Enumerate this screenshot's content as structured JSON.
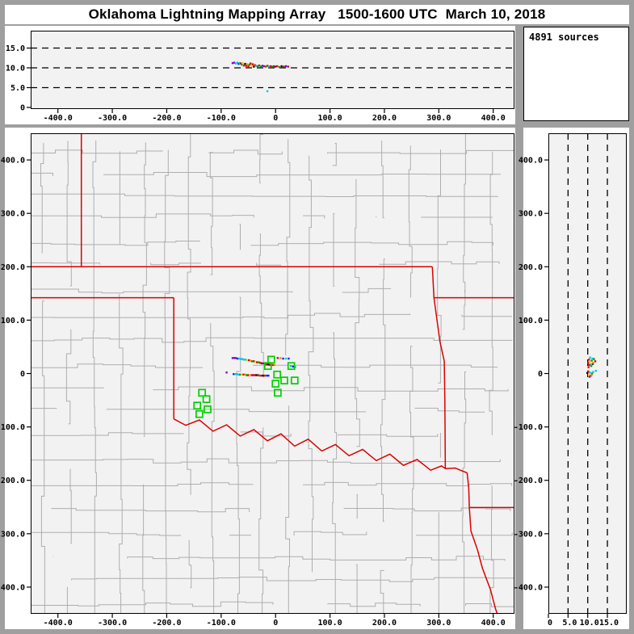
{
  "window": {
    "title": "Oklahoma Lightning Mapping Array   1500-1600 UTC  March 10, 2018",
    "sources_count_label": "4891 sources"
  },
  "palette": {
    "frame_gray": "#9f9f9f",
    "panel_white": "#ffffff",
    "plot_background": "#f2f2f2",
    "axis_black": "#000000",
    "county_line": "#aeaeae",
    "state_border_red": "#dd0000",
    "station_green": "#00cf00"
  },
  "axes": {
    "east_west": {
      "range_km": [
        -450,
        439
      ],
      "ticks": [
        -400,
        -300,
        -200,
        -100,
        0,
        100,
        200,
        300,
        400
      ],
      "tick_labels": [
        "-400.0",
        "-300.0",
        "-200.0",
        "-100.0",
        "0",
        "100.0",
        "200.0",
        "300.0",
        "400.0"
      ]
    },
    "north_south": {
      "range_km": [
        -450,
        450
      ],
      "ticks": [
        400,
        300,
        200,
        100,
        0,
        -100,
        -200,
        -300,
        -400
      ],
      "tick_labels": [
        "400.0",
        "300.0",
        "200.0",
        "100.0",
        "0",
        "-100.0",
        "-200.0",
        "-300.0",
        "-400.0"
      ]
    },
    "altitude": {
      "range_km": [
        0,
        19.5
      ],
      "ticks": [
        0,
        5,
        10,
        15
      ],
      "tick_labels": [
        "0",
        "5.0",
        "10.0",
        "15.0"
      ],
      "dashed_gridlines_km": [
        5,
        10,
        15
      ]
    }
  },
  "chart_data": [
    {
      "type": "scatter",
      "name": "altitude-vs-east-west",
      "xlabel": "",
      "ylabel": "",
      "xlim": [
        -450,
        439
      ],
      "ylim": [
        0,
        19.5
      ],
      "points": [
        [
          -79,
          11.2,
          "#9400d3"
        ],
        [
          -76,
          11.3,
          "#9400d3"
        ],
        [
          -73,
          11.1,
          "#00c8e8"
        ],
        [
          -70,
          11.3,
          "#00c8e8"
        ],
        [
          -68,
          11.0,
          "#2020ff"
        ],
        [
          -66,
          11.2,
          "#00c8e8"
        ],
        [
          -64,
          11.1,
          "#e80000"
        ],
        [
          -62,
          10.8,
          "#00a000"
        ],
        [
          -60,
          11.2,
          "#ffd400"
        ],
        [
          -58,
          10.6,
          "#e80000"
        ],
        [
          -56,
          11.0,
          "#111111"
        ],
        [
          -54,
          10.5,
          "#e80000"
        ],
        [
          -52,
          10.9,
          "#ff8c00"
        ],
        [
          -50,
          10.4,
          "#e80000"
        ],
        [
          -48,
          10.8,
          "#00a000"
        ],
        [
          -46,
          11.1,
          "#e80000"
        ],
        [
          -44,
          10.5,
          "#ffd400"
        ],
        [
          -42,
          10.9,
          "#e80000"
        ],
        [
          -40,
          10.3,
          "#111111"
        ],
        [
          -38,
          10.7,
          "#e80000"
        ],
        [
          -36,
          10.5,
          "#00c8e8"
        ],
        [
          -33,
          10.4,
          "#00a000"
        ],
        [
          -30,
          10.6,
          "#e80000"
        ],
        [
          -27,
          10.3,
          "#00a000"
        ],
        [
          -24,
          10.5,
          "#2020ff"
        ],
        [
          -21,
          10.4,
          "#e80000"
        ],
        [
          -18,
          10.3,
          "#00a000"
        ],
        [
          -15,
          10.5,
          "#e80000"
        ],
        [
          -12,
          10.3,
          "#00c8e8"
        ],
        [
          -9,
          10.4,
          "#e80000"
        ],
        [
          -6,
          10.3,
          "#00a000"
        ],
        [
          -3,
          10.4,
          "#e80000"
        ],
        [
          0,
          10.3,
          "#2020ff"
        ],
        [
          3,
          10.4,
          "#e80000"
        ],
        [
          7,
          10.2,
          "#00a000"
        ],
        [
          11,
          10.4,
          "#111111"
        ],
        [
          15,
          10.3,
          "#e80000"
        ],
        [
          19,
          10.4,
          "#2020ff"
        ],
        [
          23,
          10.3,
          "#e80000"
        ],
        [
          -15,
          4.1,
          "#00c8e8"
        ]
      ]
    },
    {
      "type": "scatter",
      "name": "plan-view-map",
      "xlabel": "",
      "ylabel": "",
      "xlim": [
        -450,
        439
      ],
      "ylim": [
        -450,
        450
      ],
      "points": [
        [
          -79,
          29,
          "#9400d3"
        ],
        [
          -76,
          29,
          "#9400d3"
        ],
        [
          -73,
          29,
          "#9400d3"
        ],
        [
          -70,
          28,
          "#2020ff"
        ],
        [
          -67,
          28,
          "#00c8e8"
        ],
        [
          -64,
          27,
          "#00c8e8"
        ],
        [
          -61,
          27,
          "#00c8e8"
        ],
        [
          -58,
          26,
          "#00c8e8"
        ],
        [
          -55,
          26,
          "#00c8e8"
        ],
        [
          -52,
          25,
          "#ffd400"
        ],
        [
          -49,
          25,
          "#e80000"
        ],
        [
          -46,
          24,
          "#ff8c00"
        ],
        [
          -43,
          23,
          "#00a000"
        ],
        [
          -40,
          23,
          "#e80000"
        ],
        [
          -37,
          22,
          "#ffd400"
        ],
        [
          -34,
          21,
          "#e80000"
        ],
        [
          -31,
          21,
          "#00a000"
        ],
        [
          -28,
          20,
          "#e80000"
        ],
        [
          -25,
          19,
          "#2020ff"
        ],
        [
          -22,
          19,
          "#e80000"
        ],
        [
          -19,
          18,
          "#00a000"
        ],
        [
          -16,
          17,
          "#e80000"
        ],
        [
          -13,
          17,
          "#111111"
        ],
        [
          -10,
          16,
          "#e80000"
        ],
        [
          -7,
          16,
          "#00a000"
        ],
        [
          -4,
          16,
          "#e80000"
        ],
        [
          -2,
          16,
          "#ff8c00"
        ],
        [
          4,
          29,
          "#e80000"
        ],
        [
          9,
          29,
          "#ff8c00"
        ],
        [
          14,
          28,
          "#2020ff"
        ],
        [
          19,
          28,
          "#00c8e8"
        ],
        [
          24,
          28,
          "#2020ff"
        ],
        [
          28,
          14,
          "#00c8e8"
        ],
        [
          32,
          13,
          "#2020ff"
        ],
        [
          36,
          12,
          "#00c8e8"
        ],
        [
          -90,
          2,
          "#9400d3"
        ],
        [
          -77,
          -1,
          "#2020ff"
        ],
        [
          -74,
          -1,
          "#00c8e8"
        ],
        [
          -71,
          -1,
          "#00c8e8"
        ],
        [
          -68,
          -2,
          "#00c8e8"
        ],
        [
          -65,
          -2,
          "#00a000"
        ],
        [
          -62,
          -2,
          "#ffd400"
        ],
        [
          -59,
          -2,
          "#e80000"
        ],
        [
          -56,
          -2,
          "#ff8c00"
        ],
        [
          -53,
          -3,
          "#00a000"
        ],
        [
          -50,
          -3,
          "#e80000"
        ],
        [
          -47,
          -3,
          "#ffd400"
        ],
        [
          -44,
          -3,
          "#e80000"
        ],
        [
          -41,
          -3,
          "#9400d3"
        ],
        [
          -38,
          -3,
          "#e80000"
        ],
        [
          -35,
          -3,
          "#111111"
        ],
        [
          -32,
          -3,
          "#e80000"
        ],
        [
          -29,
          -4,
          "#00a000"
        ],
        [
          -26,
          -4,
          "#e80000"
        ],
        [
          -23,
          -4,
          "#111111"
        ],
        [
          -20,
          -4,
          "#e80000"
        ],
        [
          -16,
          -4,
          "#2020ff"
        ],
        [
          -13,
          -4,
          "#2020ff"
        ]
      ],
      "stations_km": [
        [
          -8,
          26
        ],
        [
          -14,
          14
        ],
        [
          29,
          14
        ],
        [
          3,
          -2
        ],
        [
          0,
          -19
        ],
        [
          16,
          -13
        ],
        [
          35,
          -13
        ],
        [
          4,
          -36
        ],
        [
          -135,
          -36
        ],
        [
          -127,
          -48
        ],
        [
          -144,
          -60
        ],
        [
          -125,
          -67
        ],
        [
          -140,
          -76
        ]
      ],
      "state_borders_km": [
        {
          "name": "colorado-kansas",
          "pts": [
            [
              -357,
              450
            ],
            [
              -357,
              200
            ]
          ]
        },
        {
          "name": "kansas-oklahoma-37n",
          "pts": [
            [
              -450,
              200
            ],
            [
              288,
              200
            ]
          ]
        },
        {
          "name": "panhandle-south-36-5n",
          "pts": [
            [
              -450,
              142
            ],
            [
              -187,
              142
            ]
          ]
        },
        {
          "name": "texas-oklahoma-100w",
          "pts": [
            [
              -187,
              142
            ],
            [
              -187,
              -85
            ]
          ]
        },
        {
          "name": "red-river",
          "pts": [
            [
              -187,
              -85
            ],
            [
              -165,
              -97
            ],
            [
              -140,
              -87
            ],
            [
              -115,
              -108
            ],
            [
              -90,
              -96
            ],
            [
              -65,
              -117
            ],
            [
              -40,
              -105
            ],
            [
              -15,
              -126
            ],
            [
              10,
              -113
            ],
            [
              35,
              -136
            ],
            [
              60,
              -123
            ],
            [
              85,
              -145
            ],
            [
              110,
              -133
            ],
            [
              135,
              -154
            ],
            [
              160,
              -142
            ],
            [
              185,
              -163
            ],
            [
              210,
              -151
            ],
            [
              235,
              -172
            ],
            [
              260,
              -161
            ],
            [
              285,
              -181
            ],
            [
              305,
              -173
            ],
            [
              312,
              -178
            ],
            [
              330,
              -177
            ],
            [
              342,
              -182
            ],
            [
              352,
              -186
            ]
          ]
        },
        {
          "name": "oklahoma-arkansas",
          "pts": [
            [
              288,
              200
            ],
            [
              291,
              142
            ],
            [
              302,
              60
            ],
            [
              310,
              23
            ],
            [
              311,
              -50
            ],
            [
              312,
              -178
            ]
          ]
        },
        {
          "name": "missouri-arkansas-36-5n",
          "pts": [
            [
              291,
              142
            ],
            [
              439,
              142
            ]
          ]
        },
        {
          "name": "arkansas-louisiana-33n",
          "pts": [
            [
              356,
              -251
            ],
            [
              439,
              -251
            ]
          ]
        },
        {
          "name": "texas-arkansas-louisiana",
          "pts": [
            [
              352,
              -186
            ],
            [
              355,
              -215
            ],
            [
              356,
              -251
            ],
            [
              359,
              -295
            ],
            [
              371,
              -330
            ],
            [
              380,
              -364
            ],
            [
              395,
              -405
            ],
            [
              404,
              -440
            ],
            [
              408,
              -452
            ]
          ]
        }
      ]
    },
    {
      "type": "scatter",
      "name": "altitude-vs-north-south",
      "xlabel": "",
      "ylabel": "",
      "xlim": [
        0,
        19.5
      ],
      "ylim": [
        -450,
        450
      ],
      "points": [
        [
          10.6,
          30,
          "#00c8e8"
        ],
        [
          11.2,
          28,
          "#00c8e8"
        ],
        [
          10.3,
          26,
          "#e80000"
        ],
        [
          11.0,
          24,
          "#00a000"
        ],
        [
          10.6,
          22,
          "#ffd400"
        ],
        [
          10.1,
          20,
          "#e80000"
        ],
        [
          11.3,
          18,
          "#111111"
        ],
        [
          10.4,
          16,
          "#e80000"
        ],
        [
          10.9,
          14,
          "#00a000"
        ],
        [
          10.2,
          12,
          "#e80000"
        ],
        [
          11.6,
          27,
          "#00a000"
        ],
        [
          11.9,
          23,
          "#e80000"
        ],
        [
          11.4,
          20,
          "#ff8c00"
        ],
        [
          10.8,
          17,
          "#00c8e8"
        ],
        [
          10.1,
          4,
          "#e80000"
        ],
        [
          10.6,
          2,
          "#00c8e8"
        ],
        [
          11.1,
          0,
          "#00a000"
        ],
        [
          10.3,
          -2,
          "#ffd400"
        ],
        [
          10.8,
          -4,
          "#e80000"
        ],
        [
          9.9,
          1,
          "#111111"
        ],
        [
          11.4,
          3,
          "#00c8e8"
        ],
        [
          10.5,
          -6,
          "#9400d3"
        ],
        [
          11.0,
          -3,
          "#ff8c00"
        ],
        [
          12.1,
          5,
          "#00c8e8"
        ]
      ]
    }
  ]
}
